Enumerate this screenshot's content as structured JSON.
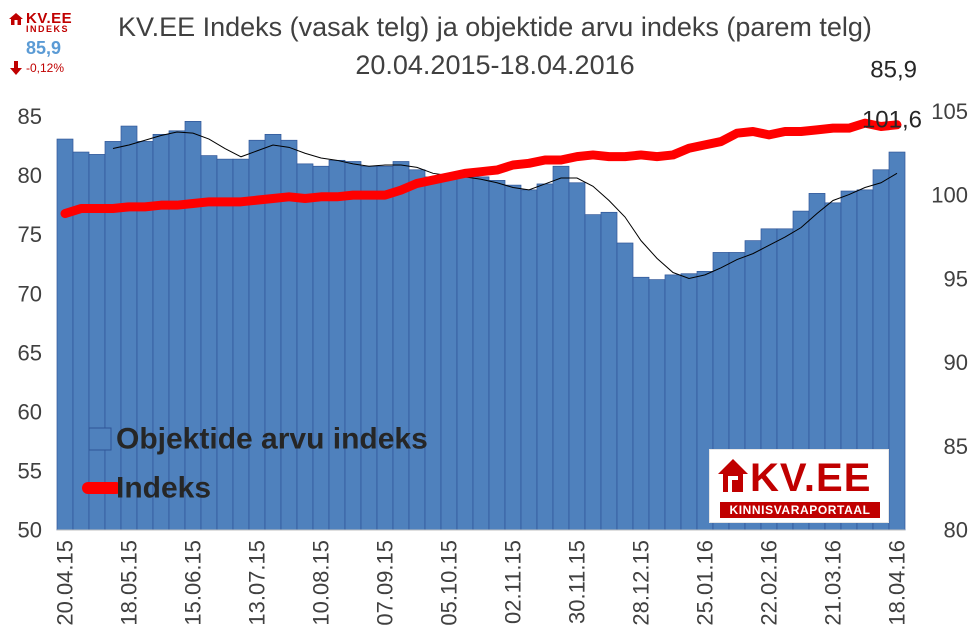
{
  "title": "KV.EE Indeks (vasak telg) ja objektide arvu indeks (parem telg) 20.04.2015-18.04.2016",
  "brand": {
    "name": "KV.EE",
    "subtitle": "INDEKS",
    "value": "85,9",
    "change": "-0,12%",
    "color": "#c00000",
    "value_color": "#5b9bd5"
  },
  "logo": {
    "name": "KV.EE",
    "tagline": "KINNISVARAPORTAAL"
  },
  "chart_data": {
    "type": "bar",
    "categories": [
      "20.04.15",
      "27.04.15",
      "04.05.15",
      "11.05.15",
      "18.05.15",
      "25.05.15",
      "01.06.15",
      "08.06.15",
      "15.06.15",
      "22.06.15",
      "29.06.15",
      "06.07.15",
      "13.07.15",
      "20.07.15",
      "27.07.15",
      "03.08.15",
      "10.08.15",
      "17.08.15",
      "24.08.15",
      "31.08.15",
      "07.09.15",
      "14.09.15",
      "21.09.15",
      "28.09.15",
      "05.10.15",
      "12.10.15",
      "19.10.15",
      "26.10.15",
      "02.11.15",
      "09.11.15",
      "16.11.15",
      "23.11.15",
      "30.11.15",
      "07.12.15",
      "14.12.15",
      "21.12.15",
      "28.12.15",
      "04.01.16",
      "11.01.16",
      "18.01.16",
      "25.01.16",
      "01.02.16",
      "08.02.16",
      "15.02.16",
      "22.02.16",
      "29.02.16",
      "07.03.16",
      "14.03.16",
      "21.03.16",
      "28.03.16",
      "04.04.16",
      "11.04.16",
      "18.04.16"
    ],
    "tick_labels": [
      "20.04.15",
      "18.05.15",
      "15.06.15",
      "13.07.15",
      "10.08.15",
      "07.09.15",
      "05.10.15",
      "02.11.15",
      "30.11.15",
      "28.12.15",
      "25.01.16",
      "22.02.16",
      "21.03.16",
      "18.04.16"
    ],
    "series": [
      {
        "name": "Objektide arvu indeks",
        "kind": "bar",
        "axis": "left",
        "color": "#4f81bd",
        "values": [
          83.1,
          82.0,
          81.8,
          82.9,
          84.2,
          82.9,
          83.5,
          83.8,
          84.6,
          81.7,
          81.4,
          81.4,
          83.0,
          83.5,
          83.0,
          81.0,
          80.8,
          81.3,
          81.2,
          80.8,
          80.8,
          81.2,
          80.5,
          79.9,
          79.9,
          79.9,
          79.9,
          79.6,
          79.2,
          78.8,
          79.3,
          80.8,
          79.4,
          76.7,
          76.9,
          74.3,
          71.4,
          71.2,
          71.6,
          71.7,
          71.9,
          73.5,
          73.5,
          74.5,
          75.5,
          75.5,
          77.0,
          78.5,
          77.7,
          78.7,
          78.8,
          80.5,
          82.0
        ]
      },
      {
        "name": "Indeks",
        "kind": "line",
        "axis": "right",
        "color": "#ff0000",
        "values": [
          98.9,
          99.2,
          99.2,
          99.2,
          99.3,
          99.3,
          99.4,
          99.4,
          99.5,
          99.6,
          99.6,
          99.6,
          99.7,
          99.8,
          99.9,
          99.8,
          99.9,
          99.9,
          100.0,
          100.0,
          100.0,
          100.3,
          100.7,
          100.9,
          101.1,
          101.3,
          101.4,
          101.5,
          101.8,
          101.9,
          102.1,
          102.1,
          102.3,
          102.4,
          102.3,
          102.3,
          102.4,
          102.3,
          102.4,
          102.8,
          103.0,
          103.2,
          103.7,
          103.8,
          103.6,
          103.8,
          103.8,
          103.9,
          104.0,
          104.0,
          104.3,
          104.1,
          104.2
        ]
      },
      {
        "name": "",
        "kind": "trend",
        "axis": "left",
        "color": "#000000",
        "values": [
          null,
          null,
          null,
          82.3,
          82.6,
          83.0,
          83.4,
          83.7,
          83.6,
          83.1,
          82.3,
          81.6,
          82.1,
          82.6,
          82.4,
          81.9,
          81.5,
          81.3,
          81.0,
          80.8,
          80.9,
          80.9,
          80.7,
          80.2,
          80.0,
          79.9,
          79.7,
          79.4,
          79.0,
          78.8,
          79.3,
          79.8,
          79.8,
          79.1,
          77.9,
          76.5,
          74.5,
          73.0,
          71.8,
          71.3,
          71.6,
          72.2,
          72.9,
          73.4,
          74.1,
          74.8,
          75.6,
          76.8,
          77.9,
          78.4,
          79.0,
          79.4,
          80.2
        ]
      }
    ],
    "left_axis": {
      "ticks": [
        "50",
        "55",
        "60",
        "65",
        "70",
        "75",
        "80",
        "85"
      ],
      "range": [
        50,
        87
      ]
    },
    "right_axis": {
      "ticks": [
        "80",
        "85",
        "90",
        "95",
        "100",
        "105"
      ],
      "range": [
        80,
        106.1
      ]
    },
    "annotations": [
      "85,9",
      "101,6"
    ],
    "legend": {
      "position": "bottom-left",
      "entries": [
        "Objektide arvu indeks",
        "Indeks"
      ]
    },
    "grid": false
  }
}
